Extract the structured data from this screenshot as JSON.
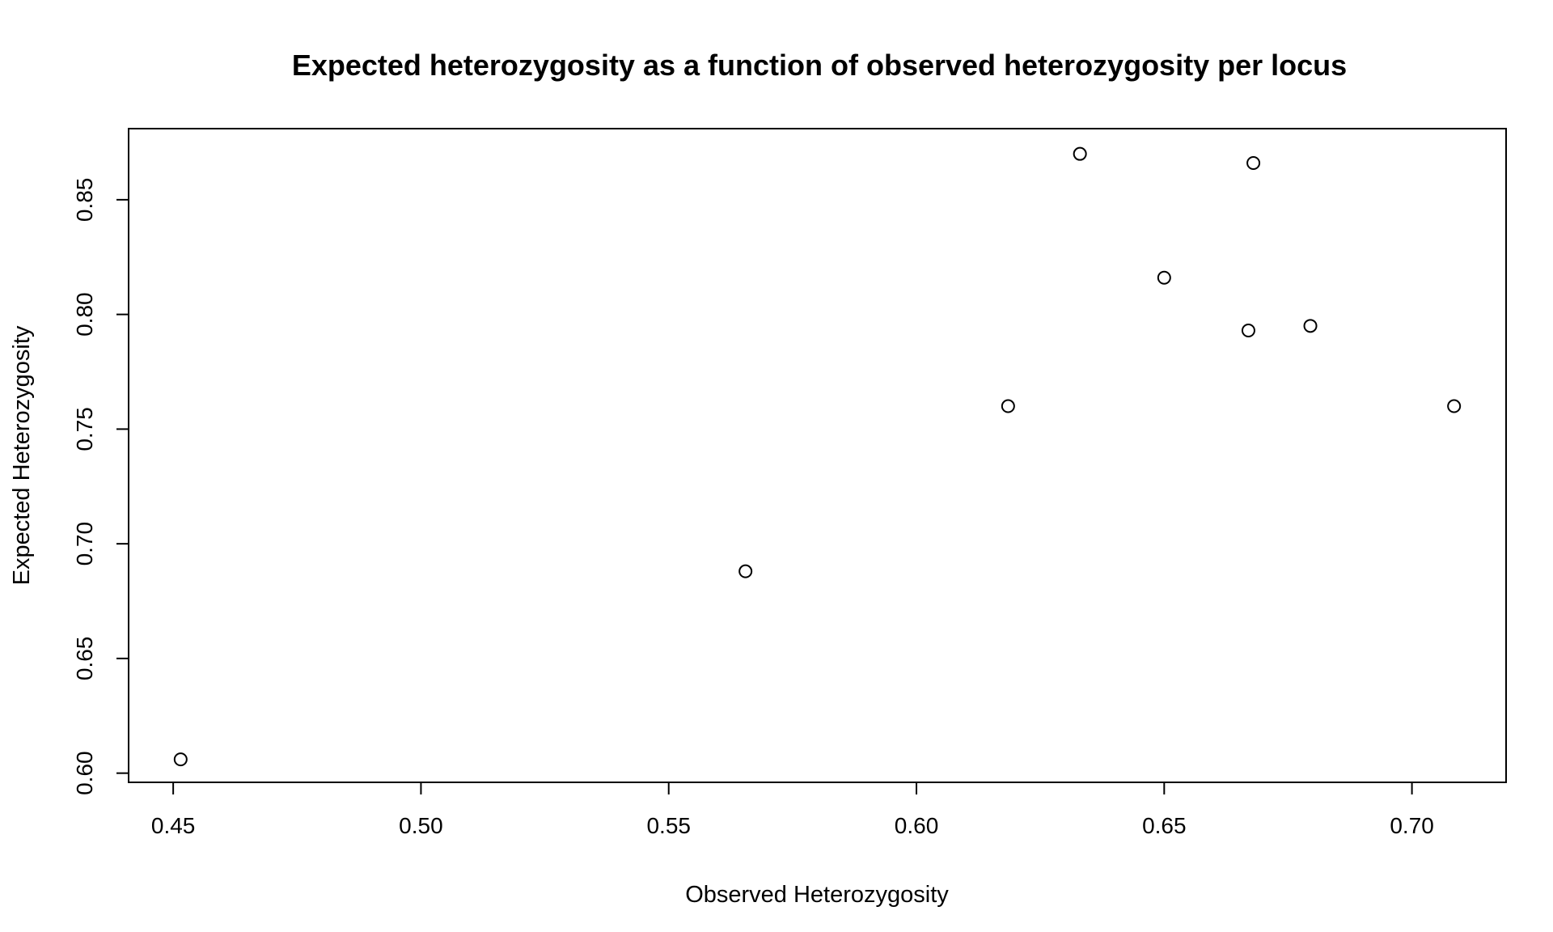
{
  "chart_data": {
    "type": "scatter",
    "title": "Expected heterozygosity as a function of observed heterozygosity per locus",
    "xlabel": "Observed Heterozygosity",
    "ylabel": "Expected Heterozygosity",
    "xlim": [
      0.441,
      0.719
    ],
    "ylim": [
      0.596,
      0.881
    ],
    "x_ticks": [
      0.45,
      0.5,
      0.55,
      0.6,
      0.65,
      0.7
    ],
    "x_tick_labels": [
      "0.45",
      "0.50",
      "0.55",
      "0.60",
      "0.65",
      "0.70"
    ],
    "y_ticks": [
      0.6,
      0.65,
      0.7,
      0.75,
      0.8,
      0.85
    ],
    "y_tick_labels": [
      "0.60",
      "0.65",
      "0.70",
      "0.75",
      "0.80",
      "0.85"
    ],
    "grid": false,
    "marker": "open-circle",
    "points": [
      {
        "x": 0.4515,
        "y": 0.606
      },
      {
        "x": 0.5655,
        "y": 0.688
      },
      {
        "x": 0.6185,
        "y": 0.76
      },
      {
        "x": 0.633,
        "y": 0.87
      },
      {
        "x": 0.65,
        "y": 0.816
      },
      {
        "x": 0.667,
        "y": 0.793
      },
      {
        "x": 0.668,
        "y": 0.866
      },
      {
        "x": 0.6795,
        "y": 0.795
      },
      {
        "x": 0.7085,
        "y": 0.76
      }
    ]
  }
}
